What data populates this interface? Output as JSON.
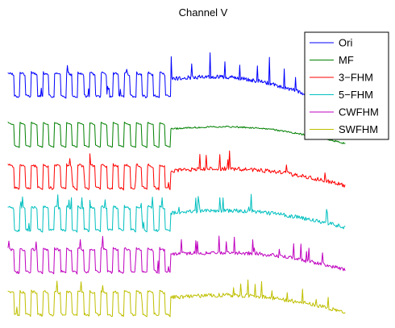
{
  "chart_data": {
    "type": "line",
    "title": "Channel V",
    "xlabel": "",
    "ylabel": "",
    "grid": false,
    "axes_visible": false,
    "legend_position": "top-right",
    "series_layout": "vertically offset traces, one per series",
    "samples_per_trace": 420,
    "x_range": [
      0,
      1
    ],
    "series": [
      {
        "name": "Ori",
        "color": "#0000ff",
        "first_part_type": "square-wave with spikes",
        "second_part_type": "slow drift with sharp spikes",
        "spike_positions": [
          0.55,
          0.62,
          0.68,
          0.73,
          0.78,
          0.84,
          0.88,
          0.93,
          0.97
        ],
        "spike_heights": [
          2.2,
          1.6,
          2.4,
          1.8,
          1.4,
          1.6,
          2.6,
          2.0,
          1.2
        ]
      },
      {
        "name": "MF",
        "color": "#008000",
        "first_part_type": "clean square-wave",
        "second_part_type": "smooth slow drift"
      },
      {
        "name": "3−FHM",
        "color": "#ff0000",
        "first_part_type": "square-wave",
        "second_part_type": "slow drift with moderate spikes"
      },
      {
        "name": "5−FHM",
        "color": "#00bfbf",
        "first_part_type": "square-wave",
        "second_part_type": "slow drift with moderate spikes"
      },
      {
        "name": "CWFHM",
        "color": "#bf00bf",
        "first_part_type": "square-wave",
        "second_part_type": "slow drift with moderate spikes"
      },
      {
        "name": "SWFHM",
        "color": "#bfbf00",
        "first_part_type": "square-wave",
        "second_part_type": "slow drift with moderate spikes"
      }
    ]
  }
}
